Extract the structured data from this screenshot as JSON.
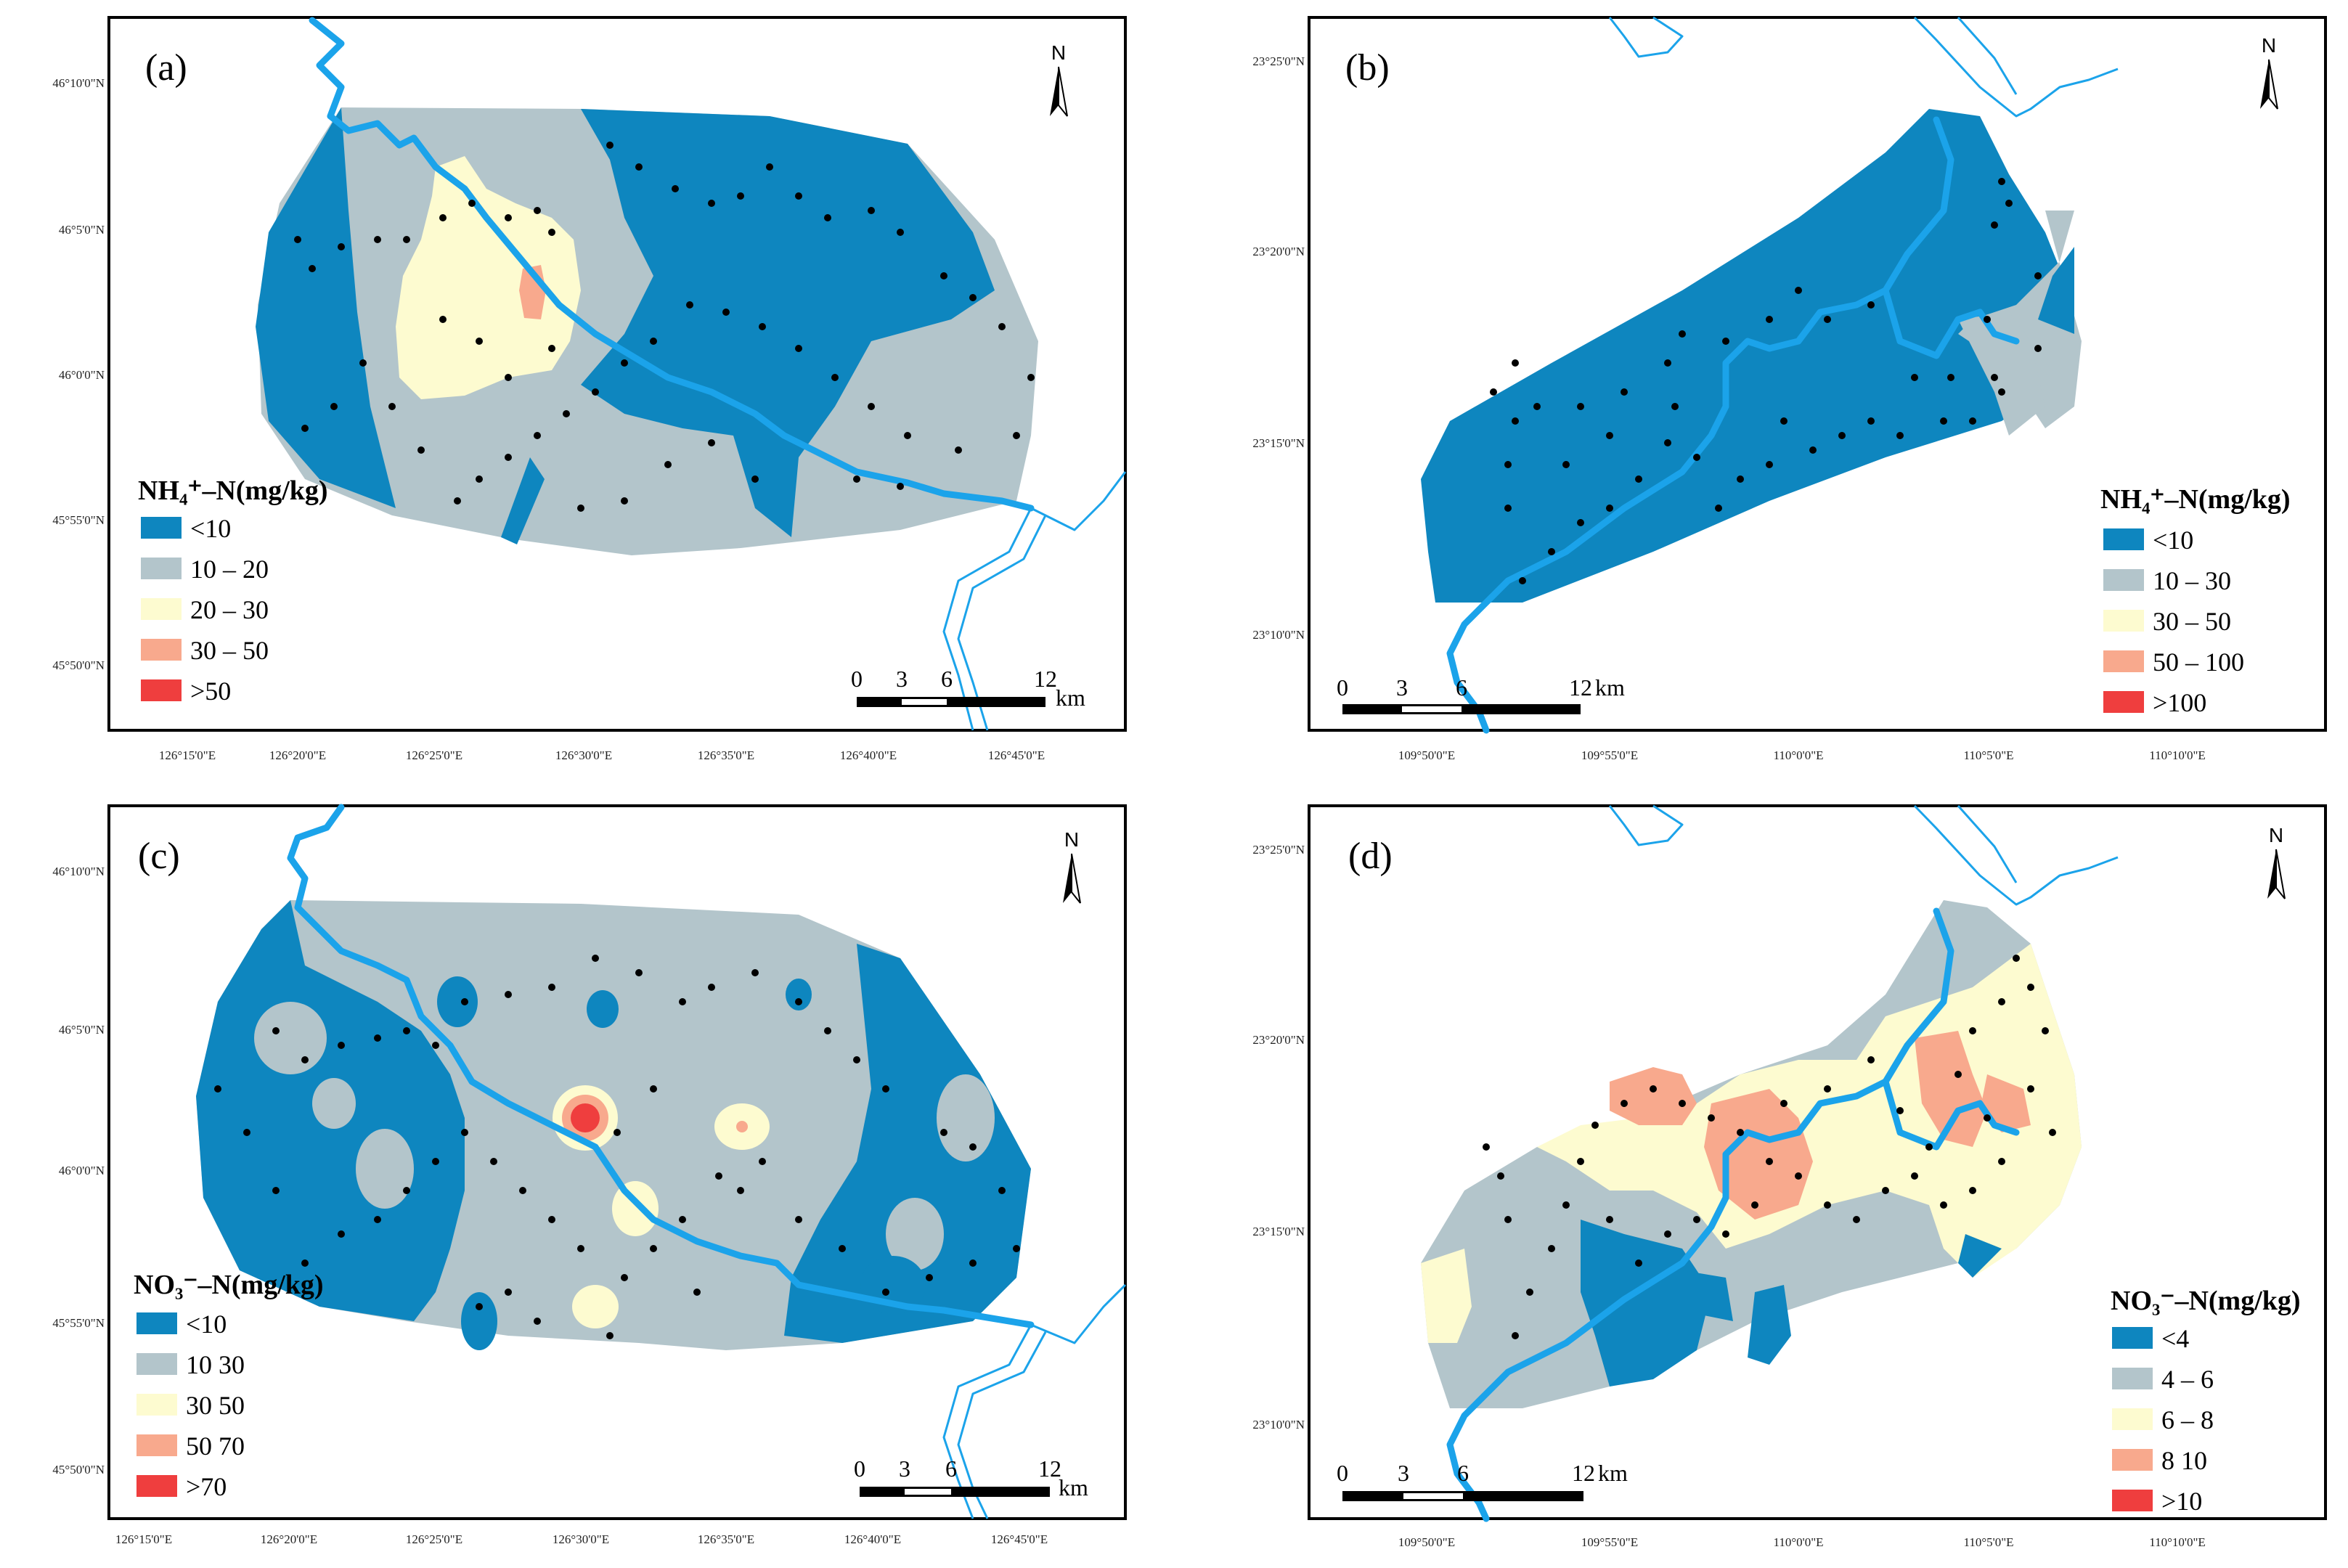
{
  "colors": {
    "class1": "#0e86bf",
    "class2": "#b3c5cb",
    "class3": "#fdfbd0",
    "class4": "#f8a98d",
    "class5": "#ef3e3e",
    "river": "#1ba3ea"
  },
  "north_label": "N",
  "scale": {
    "ticks": [
      "0",
      "3",
      "6",
      "12"
    ],
    "unit": "km"
  },
  "panels": {
    "a": {
      "label": "(a)",
      "legend_title": "NH₄⁺–N(mg/kg)",
      "classes": [
        "<10",
        "10 – 20",
        "20 – 30",
        "30 – 50",
        ">50"
      ],
      "y_ticks": [
        "46°10'0\"N",
        "46°5'0\"N",
        "46°0'0\"N",
        "45°55'0\"N",
        "45°50'0\"N"
      ],
      "x_ticks": [
        "126°15'0\"E",
        "126°20'0\"E",
        "126°25'0\"E",
        "126°30'0\"E",
        "126°35'0\"E",
        "126°40'0\"E",
        "126°45'0\"E"
      ]
    },
    "b": {
      "label": "(b)",
      "legend_title": "NH₄⁺–N(mg/kg)",
      "classes": [
        "<10",
        "10 – 30",
        "30 – 50",
        "50 – 100",
        ">100"
      ],
      "y_ticks": [
        "23°25'0\"N",
        "23°20'0\"N",
        "23°15'0\"N",
        "23°10'0\"N"
      ],
      "x_ticks": [
        "109°50'0\"E",
        "109°55'0\"E",
        "110°0'0\"E",
        "110°5'0\"E",
        "110°10'0\"E"
      ]
    },
    "c": {
      "label": "(c)",
      "legend_title": "NO₃⁻–N(mg/kg)",
      "classes": [
        "<10",
        "10 30",
        "30 50",
        "50 70",
        ">70"
      ],
      "y_ticks": [
        "46°10'0\"N",
        "46°5'0\"N",
        "46°0'0\"N",
        "45°55'0\"N",
        "45°50'0\"N"
      ],
      "x_ticks": [
        "126°15'0\"E",
        "126°20'0\"E",
        "126°25'0\"E",
        "126°30'0\"E",
        "126°35'0\"E",
        "126°40'0\"E",
        "126°45'0\"E"
      ]
    },
    "d": {
      "label": "(d)",
      "legend_title": "NO₃⁻–N(mg/kg)",
      "classes": [
        "<4",
        "4 – 6",
        "6 – 8",
        "8 10",
        ">10"
      ],
      "y_ticks": [
        "23°25'0\"N",
        "23°20'0\"N",
        "23°15'0\"N",
        "23°10'0\"N"
      ],
      "x_ticks": [
        "109°50'0\"E",
        "109°55'0\"E",
        "110°0'0\"E",
        "110°5'0\"E",
        "110°10'0\"E"
      ]
    }
  }
}
